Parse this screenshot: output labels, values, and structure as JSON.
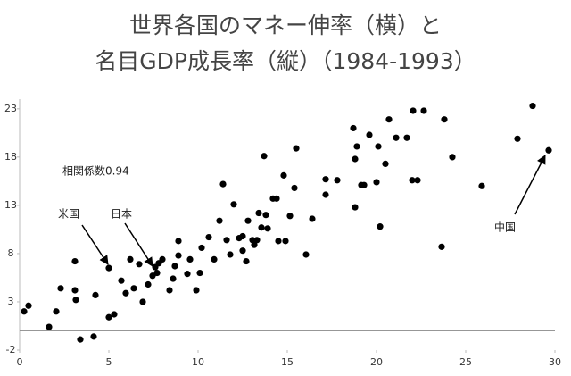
{
  "chart_data": {
    "type": "scatter",
    "title": [
      "世界各国のマネー伸率（横）と",
      "名目GDP成長率（縦）（1984-1993）"
    ],
    "annotations": [
      "相関係数0.94",
      "米国",
      "日本",
      "中国"
    ],
    "color": "#000000",
    "xlim": [
      0,
      30
    ],
    "xticks": [
      0,
      5,
      10,
      15,
      20,
      25,
      30
    ],
    "ylim": [
      -2,
      24
    ],
    "yticks": [
      -2,
      3,
      8,
      13,
      18,
      23
    ],
    "x": [
      0.25,
      0.5,
      1.65,
      2.05,
      2.3,
      3.1,
      3.1,
      3.15,
      3.4,
      4.15,
      4.25,
      5.0,
      5.0,
      5.3,
      5.7,
      5.95,
      6.2,
      6.4,
      6.7,
      6.9,
      7.2,
      7.45,
      7.6,
      7.8,
      8.0,
      7.7,
      8.4,
      8.6,
      8.7,
      8.9,
      8.9,
      9.4,
      9.55,
      9.9,
      10.1,
      10.2,
      10.6,
      10.9,
      11.2,
      11.4,
      11.6,
      11.8,
      12.0,
      12.3,
      12.5,
      12.5,
      12.7,
      12.8,
      13.05,
      13.15,
      13.3,
      13.4,
      13.55,
      13.7,
      13.8,
      13.9,
      14.2,
      14.4,
      14.5,
      14.8,
      14.9,
      15.15,
      15.4,
      15.5,
      16.05,
      16.4,
      17.15,
      17.15,
      17.8,
      18.7,
      18.8,
      18.8,
      18.9,
      19.15,
      19.3,
      19.6,
      20.0,
      20.1,
      20.2,
      20.5,
      20.7,
      21.1,
      21.7,
      22.05,
      22.0,
      22.3,
      22.65,
      23.65,
      23.8,
      24.25,
      25.9,
      27.9,
      28.75,
      29.65
    ],
    "y": [
      2.0,
      2.6,
      0.4,
      2.0,
      4.4,
      7.2,
      4.2,
      3.2,
      -0.9,
      -0.6,
      3.7,
      6.5,
      1.4,
      1.7,
      5.2,
      3.9,
      7.4,
      4.4,
      6.9,
      3.0,
      4.8,
      5.7,
      6.6,
      7.0,
      7.4,
      6.0,
      4.2,
      5.4,
      6.7,
      9.3,
      7.8,
      5.9,
      7.4,
      4.2,
      6.0,
      8.6,
      9.7,
      7.4,
      11.4,
      15.2,
      9.4,
      7.9,
      13.1,
      9.6,
      9.8,
      8.3,
      7.2,
      11.4,
      9.4,
      8.9,
      9.4,
      12.2,
      10.7,
      18.1,
      12.0,
      10.6,
      13.7,
      13.7,
      9.3,
      16.1,
      9.3,
      11.9,
      14.8,
      18.9,
      7.9,
      11.6,
      14.1,
      15.7,
      15.6,
      21.0,
      17.8,
      12.8,
      19.1,
      15.1,
      15.1,
      20.3,
      15.4,
      19.1,
      10.8,
      17.3,
      21.9,
      20.0,
      20.0,
      22.8,
      15.6,
      15.6,
      22.8,
      8.7,
      21.9,
      18.0,
      15.0,
      19.9,
      23.3,
      18.7
    ]
  }
}
